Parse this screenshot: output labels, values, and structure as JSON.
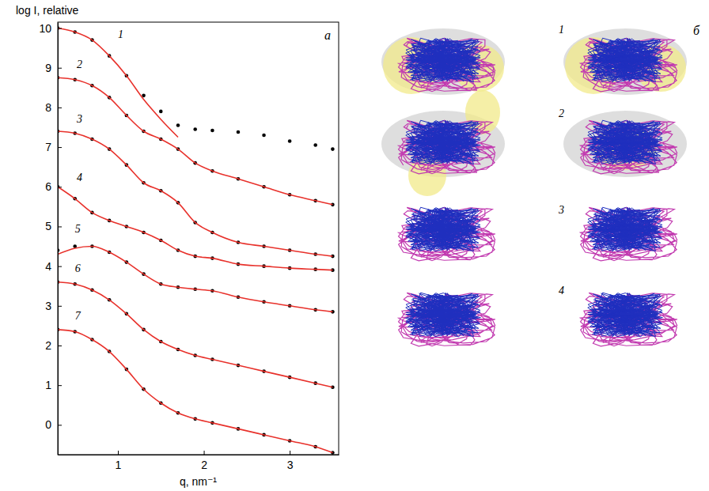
{
  "chart_data": {
    "type": "line",
    "y_label": "log I, relative",
    "x_label": "q, nm⁻¹",
    "panel_label": "a",
    "x": [
      0.3,
      0.5,
      0.7,
      0.9,
      1.1,
      1.3,
      1.5,
      1.7,
      1.9,
      2.1,
      2.4,
      2.7,
      3.0,
      3.3,
      3.5
    ],
    "xlim": [
      0.3,
      3.57
    ],
    "xticks": [
      1,
      2,
      3
    ],
    "ylim": [
      -0.75,
      10.15
    ],
    "yticks": [
      0,
      1,
      2,
      3,
      4,
      5,
      6,
      7,
      8,
      9,
      10
    ],
    "series": [
      {
        "type": "scatter",
        "marker": "circle",
        "color": "#000000",
        "values": [
          10.0,
          9.9,
          9.7,
          9.3,
          8.8,
          8.3,
          7.9,
          7.55,
          7.45,
          7.42,
          7.38,
          7.3,
          7.15,
          7.05,
          6.95
        ]
      },
      {
        "type": "line",
        "line_style": "solid",
        "color": "#e8312b",
        "values": [
          10.0,
          9.9,
          9.7,
          9.3,
          8.8,
          8.2,
          7.7,
          7.25,
          null,
          null,
          null,
          null,
          null,
          null,
          null
        ]
      },
      {
        "type": "scatter",
        "marker": "circle",
        "color": "#000000",
        "values": [
          8.75,
          8.7,
          8.55,
          8.25,
          7.8,
          7.4,
          7.2,
          6.95,
          6.6,
          6.4,
          6.2,
          6.0,
          5.8,
          5.65,
          5.55
        ]
      },
      {
        "type": "line",
        "line_style": "solid",
        "color": "#e8312b",
        "values": [
          8.75,
          8.7,
          8.55,
          8.25,
          7.8,
          7.4,
          7.2,
          6.95,
          6.6,
          6.4,
          6.2,
          6.0,
          5.8,
          5.65,
          5.55
        ]
      },
      {
        "type": "scatter",
        "marker": "circle",
        "color": "#000000",
        "values": [
          7.4,
          7.35,
          7.2,
          6.95,
          6.55,
          6.1,
          5.9,
          5.6,
          5.1,
          4.85,
          4.6,
          4.5,
          4.4,
          4.3,
          4.25
        ]
      },
      {
        "type": "line",
        "line_style": "solid",
        "color": "#e8312b",
        "values": [
          7.4,
          7.35,
          7.2,
          6.95,
          6.55,
          6.1,
          5.9,
          5.6,
          5.1,
          4.85,
          4.6,
          4.5,
          4.4,
          4.3,
          4.25
        ]
      },
      {
        "type": "scatter",
        "marker": "circle",
        "color": "#000000",
        "values": [
          6.0,
          5.7,
          5.35,
          5.15,
          5.0,
          4.85,
          4.65,
          4.4,
          4.25,
          4.2,
          4.05,
          4.0,
          3.95,
          3.92,
          3.9
        ]
      },
      {
        "type": "line",
        "line_style": "solid",
        "color": "#e8312b",
        "values": [
          6.0,
          5.7,
          5.35,
          5.15,
          5.0,
          4.85,
          4.65,
          4.4,
          4.25,
          4.2,
          4.05,
          4.0,
          3.95,
          3.92,
          3.9
        ]
      },
      {
        "type": "scatter",
        "marker": "circle",
        "color": "#000000",
        "values": [
          4.4,
          4.5,
          4.5,
          4.35,
          4.1,
          3.8,
          3.55,
          3.47,
          3.42,
          3.38,
          3.22,
          3.1,
          3.0,
          2.9,
          2.85
        ]
      },
      {
        "type": "line",
        "line_style": "solid",
        "color": "#e8312b",
        "values": [
          4.3,
          4.45,
          4.5,
          4.35,
          4.1,
          3.8,
          3.55,
          3.47,
          3.42,
          3.38,
          3.22,
          3.1,
          3.0,
          2.9,
          2.85
        ]
      },
      {
        "type": "scatter",
        "marker": "circle",
        "color": "#000000",
        "values": [
          3.6,
          3.55,
          3.4,
          3.15,
          2.8,
          2.4,
          2.1,
          1.9,
          1.75,
          1.65,
          1.5,
          1.35,
          1.2,
          1.05,
          0.95
        ]
      },
      {
        "type": "line",
        "line_style": "solid",
        "color": "#e8312b",
        "values": [
          3.6,
          3.55,
          3.4,
          3.15,
          2.8,
          2.4,
          2.1,
          1.9,
          1.75,
          1.65,
          1.5,
          1.35,
          1.2,
          1.05,
          0.95
        ]
      },
      {
        "type": "scatter",
        "marker": "circle",
        "color": "#000000",
        "values": [
          2.4,
          2.35,
          2.15,
          1.85,
          1.4,
          0.9,
          0.55,
          0.3,
          0.15,
          0.05,
          -0.1,
          -0.25,
          -0.4,
          -0.55,
          -0.7
        ]
      },
      {
        "type": "line",
        "line_style": "solid",
        "color": "#e8312b",
        "values": [
          2.4,
          2.35,
          2.15,
          1.85,
          1.4,
          0.9,
          0.55,
          0.3,
          0.15,
          0.05,
          -0.1,
          -0.25,
          -0.4,
          -0.55,
          -0.7
        ]
      }
    ],
    "annotations": [
      {
        "text": "1",
        "x": 1.0,
        "y": 9.75
      },
      {
        "text": "2",
        "x": 0.52,
        "y": 9.0
      },
      {
        "text": "3",
        "x": 0.52,
        "y": 7.62
      },
      {
        "text": "4",
        "x": 0.52,
        "y": 6.15
      },
      {
        "text": "5",
        "x": 0.5,
        "y": 4.85
      },
      {
        "text": "6",
        "x": 0.5,
        "y": 3.85
      },
      {
        "text": "7",
        "x": 0.5,
        "y": 2.65
      }
    ]
  },
  "structures_panel": {
    "letter": "б",
    "labels": [
      "1",
      "2",
      "3",
      "4"
    ]
  }
}
